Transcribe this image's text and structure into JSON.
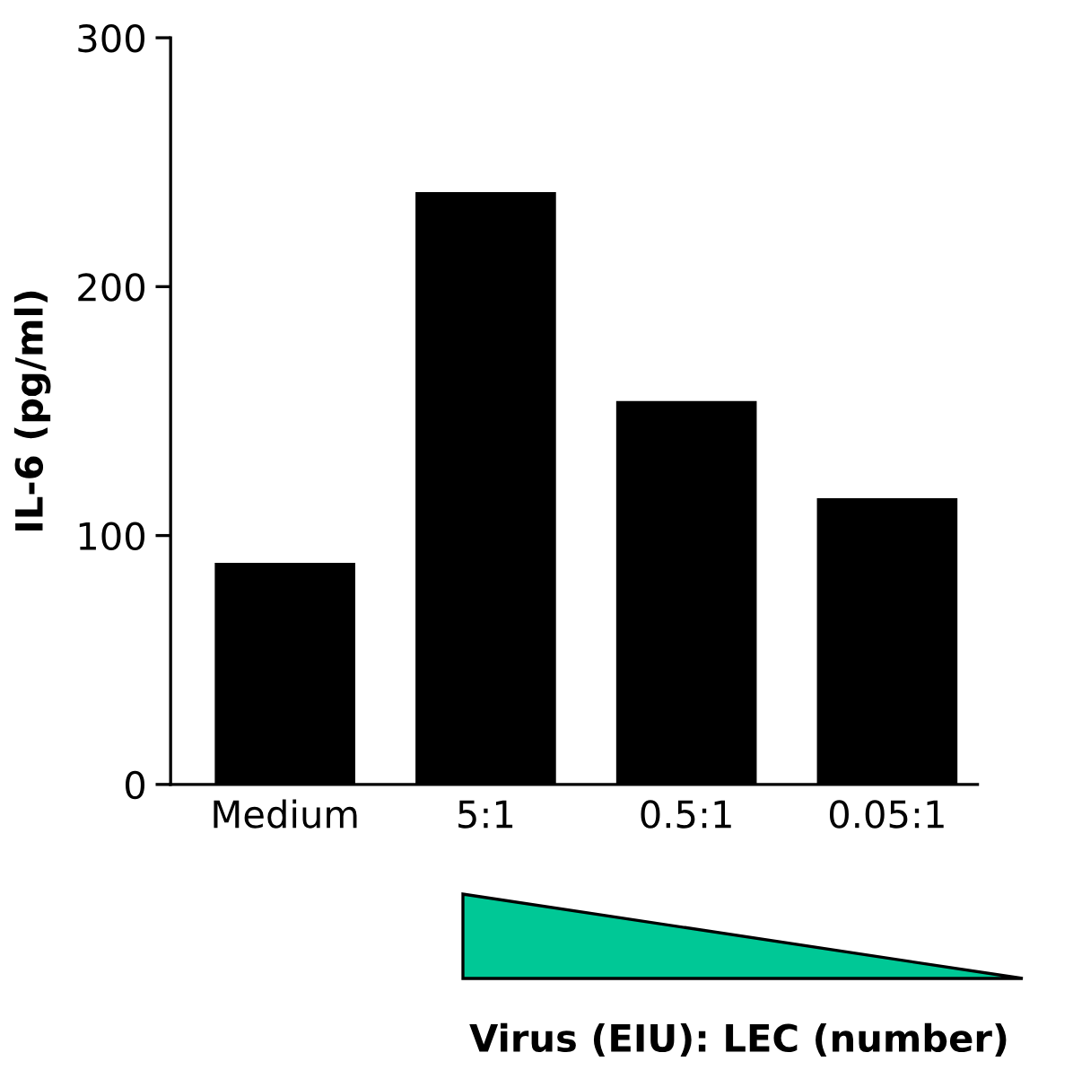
{
  "chart_data": {
    "type": "bar",
    "ylabel": "IL-6 (pg/ml)",
    "annotations": [
      "Virus (EIU): LEC (number)"
    ],
    "categories": [
      "Medium",
      "5:1",
      "0.5:1",
      "0.05:1"
    ],
    "values": [
      89,
      238,
      154,
      115
    ],
    "color": "#000000",
    "ylim": [
      0,
      300
    ],
    "yticks": [
      0,
      100,
      200,
      300
    ],
    "grid": false,
    "legend": false
  }
}
